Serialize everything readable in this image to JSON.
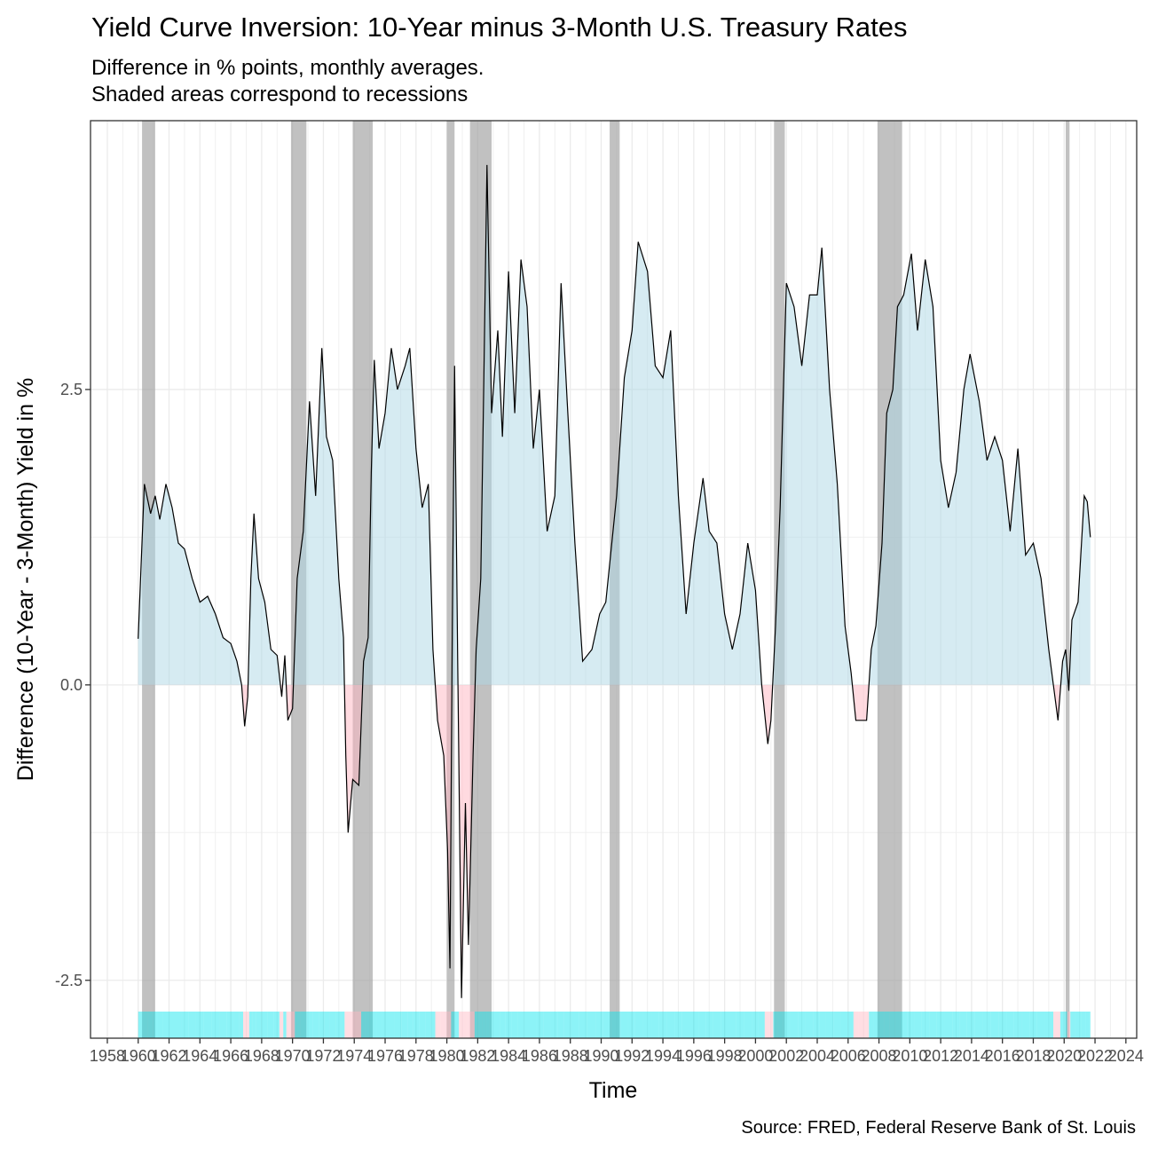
{
  "chart_data": {
    "type": "area",
    "title": "Yield Curve Inversion: 10-Year minus 3-Month U.S. Treasury Rates",
    "subtitle": [
      "Difference in % points, monthly averages.",
      "Shaded areas correspond to recessions"
    ],
    "xlabel": "Time",
    "ylabel": "Difference (10-Year - 3-Month) Yield in %",
    "caption": "Source: FRED, Federal Reserve Bank of St. Louis",
    "x": [
      1960.0,
      1960.2,
      1960.4,
      1960.8,
      1961.1,
      1961.4,
      1961.8,
      1962.2,
      1962.6,
      1963.0,
      1963.5,
      1964.0,
      1964.5,
      1965.0,
      1965.5,
      1966.0,
      1966.4,
      1966.7,
      1966.9,
      1967.1,
      1967.3,
      1967.5,
      1967.8,
      1968.2,
      1968.6,
      1969.0,
      1969.3,
      1969.5,
      1969.7,
      1970.0,
      1970.3,
      1970.7,
      1971.1,
      1971.5,
      1971.9,
      1972.2,
      1972.6,
      1973.0,
      1973.3,
      1973.45,
      1973.6,
      1973.9,
      1974.3,
      1974.6,
      1974.9,
      1975.1,
      1975.3,
      1975.6,
      1976.0,
      1976.4,
      1976.8,
      1977.3,
      1977.6,
      1978.0,
      1978.4,
      1978.8,
      1979.1,
      1979.4,
      1979.8,
      1980.05,
      1980.2,
      1980.35,
      1980.5,
      1980.7,
      1980.85,
      1980.95,
      1981.2,
      1981.4,
      1981.7,
      1981.9,
      1982.2,
      1982.4,
      1982.6,
      1982.9,
      1983.3,
      1983.6,
      1984.0,
      1984.4,
      1984.8,
      1985.2,
      1985.6,
      1986.0,
      1986.5,
      1987.0,
      1987.4,
      1987.8,
      1988.3,
      1988.8,
      1989.4,
      1989.9,
      1990.3,
      1991.0,
      1991.5,
      1992.0,
      1992.4,
      1993.0,
      1993.5,
      1994.0,
      1994.5,
      1995.0,
      1995.5,
      1996.0,
      1996.6,
      1997.0,
      1997.5,
      1998.0,
      1998.5,
      1999.0,
      1999.5,
      2000.0,
      2000.4,
      2000.8,
      2001.0,
      2001.3,
      2001.6,
      2002.0,
      2002.5,
      2003.0,
      2003.5,
      2004.0,
      2004.3,
      2004.8,
      2005.3,
      2005.8,
      2006.2,
      2006.5,
      2006.8,
      2007.2,
      2007.5,
      2007.8,
      2008.2,
      2008.5,
      2008.9,
      2009.2,
      2009.6,
      2010.1,
      2010.5,
      2011.0,
      2011.5,
      2012.0,
      2012.5,
      2013.0,
      2013.5,
      2013.9,
      2014.5,
      2015.0,
      2015.5,
      2016.0,
      2016.5,
      2017.0,
      2017.5,
      2018.0,
      2018.5,
      2019.0,
      2019.6,
      2019.9,
      2020.1,
      2020.3,
      2020.5,
      2020.9,
      2021.3,
      2021.5,
      2021.7
    ],
    "values": [
      0.39,
      1.05,
      1.7,
      1.45,
      1.6,
      1.4,
      1.7,
      1.5,
      1.2,
      1.15,
      0.9,
      0.7,
      0.75,
      0.6,
      0.4,
      0.35,
      0.2,
      0.0,
      -0.35,
      -0.1,
      0.9,
      1.45,
      0.9,
      0.7,
      0.3,
      0.25,
      -0.1,
      0.25,
      -0.3,
      -0.2,
      0.9,
      1.3,
      2.4,
      1.6,
      2.85,
      2.1,
      1.9,
      0.9,
      0.4,
      -0.6,
      -1.25,
      -0.8,
      -0.85,
      0.2,
      0.4,
      1.8,
      2.75,
      2.0,
      2.3,
      2.85,
      2.5,
      2.7,
      2.85,
      2.0,
      1.5,
      1.7,
      0.3,
      -0.3,
      -0.6,
      -1.4,
      -2.4,
      0.5,
      2.7,
      0.2,
      -1.5,
      -2.65,
      -1.0,
      -2.2,
      -0.6,
      0.3,
      0.9,
      2.6,
      4.4,
      2.3,
      3.0,
      2.1,
      3.5,
      2.3,
      3.6,
      3.2,
      2.0,
      2.5,
      1.3,
      1.6,
      3.4,
      2.4,
      1.2,
      0.2,
      0.3,
      0.6,
      0.7,
      1.6,
      2.6,
      3.0,
      3.75,
      3.5,
      2.7,
      2.6,
      3.0,
      1.6,
      0.6,
      1.2,
      1.75,
      1.3,
      1.2,
      0.6,
      0.3,
      0.6,
      1.2,
      0.8,
      0.0,
      -0.5,
      -0.3,
      0.5,
      1.5,
      3.4,
      3.2,
      2.7,
      3.3,
      3.3,
      3.7,
      2.5,
      1.7,
      0.5,
      0.1,
      -0.3,
      -0.3,
      -0.3,
      0.3,
      0.5,
      1.2,
      2.3,
      2.5,
      3.2,
      3.3,
      3.65,
      3.0,
      3.6,
      3.2,
      1.9,
      1.5,
      1.8,
      2.5,
      2.8,
      2.4,
      1.9,
      2.1,
      1.9,
      1.3,
      2.0,
      1.1,
      1.2,
      0.9,
      0.3,
      -0.3,
      0.2,
      0.3,
      -0.05,
      0.55,
      0.7,
      1.6,
      1.55,
      1.25
    ],
    "recessions": [
      [
        1960.25,
        1961.1
      ],
      [
        1969.9,
        1970.9
      ],
      [
        1973.9,
        1975.2
      ],
      [
        1980.0,
        1980.5
      ],
      [
        1981.5,
        1982.9
      ],
      [
        1990.55,
        1991.2
      ],
      [
        2001.2,
        2001.9
      ],
      [
        2007.9,
        2009.5
      ],
      [
        2020.1,
        2020.35
      ]
    ],
    "line_color": "#000000",
    "positive_color": "#add8e6",
    "negative_color": "#ffb6c1",
    "rug_positive_color": "#00e5ee",
    "rug_negative_color": "#ffb6c1",
    "recession_color": "#a0a0a0",
    "xlim": [
      1956.91,
      2024.7
    ],
    "ylim": [
      -2.99,
      4.775
    ],
    "xticks": [
      1958,
      1960,
      1962,
      1964,
      1966,
      1968,
      1970,
      1972,
      1974,
      1976,
      1978,
      1980,
      1982,
      1984,
      1986,
      1988,
      1990,
      1992,
      1994,
      1996,
      1998,
      2000,
      2002,
      2004,
      2006,
      2008,
      2010,
      2012,
      2014,
      2016,
      2018,
      2020,
      2022,
      2024
    ],
    "yticks": [
      -2.5,
      {
        "value": 0,
        "label": "0.0"
      },
      2.5
    ],
    "grid": true
  }
}
